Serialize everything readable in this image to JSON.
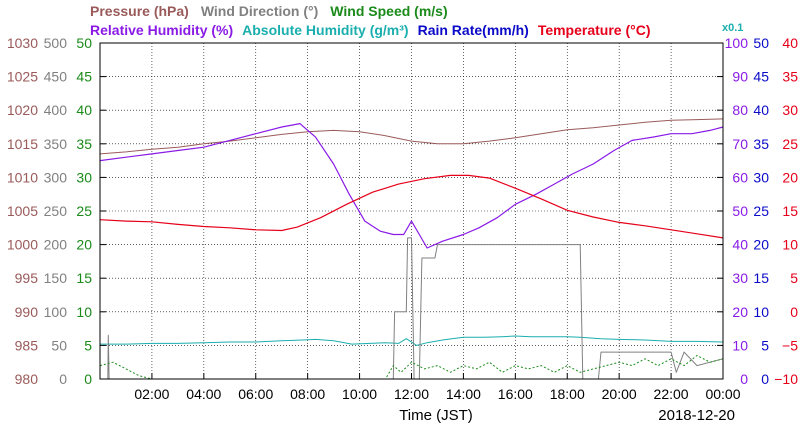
{
  "chart_data": {
    "type": "line",
    "legend": {
      "row1": [
        {
          "key": "pressure",
          "text": "Pressure (hPa)",
          "color": "#9a5a5a"
        },
        {
          "key": "wind_dir",
          "text": "Wind Direction (°)",
          "color": "#808080"
        },
        {
          "key": "wind_speed",
          "text": "Wind Speed (m/s)",
          "color": "#1a8a1a"
        }
      ],
      "row2": [
        {
          "key": "rh",
          "text": "Relative Humidity (%)",
          "color": "#8a1ae6"
        },
        {
          "key": "ah",
          "text": "Absolute Humidity (g/m³)",
          "color": "#1aaeae"
        },
        {
          "key": "rain",
          "text": "Rain Rate(mm/h)",
          "color": "#0a0ac8"
        },
        {
          "key": "temp",
          "text": "Temperature  (°C)",
          "color": "#e6001a"
        }
      ],
      "rain_scale_note": "x0.1"
    },
    "xlabel": "Time (JST)",
    "date": "2018-12-20",
    "x_ticks": [
      "02:00",
      "04:00",
      "06:00",
      "08:00",
      "10:00",
      "12:00",
      "14:00",
      "16:00",
      "18:00",
      "20:00",
      "22:00",
      "00:00"
    ],
    "xlim": [
      0,
      24
    ],
    "axes": {
      "pressure": {
        "min": 980,
        "max": 1030,
        "ticks": [
          "980",
          "985",
          "990",
          "995",
          "1000",
          "1005",
          "1010",
          "1015",
          "1020",
          "1025",
          "1030"
        ]
      },
      "wind_dir": {
        "min": 0,
        "max": 500,
        "ticks": [
          "0",
          "50",
          "100",
          "150",
          "200",
          "250",
          "300",
          "350",
          "400",
          "450",
          "500"
        ]
      },
      "wind_speed": {
        "min": 0,
        "max": 50,
        "ticks": [
          "0",
          "5",
          "10",
          "15",
          "20",
          "25",
          "30",
          "35",
          "40",
          "45",
          "50"
        ]
      },
      "rh": {
        "min": 0,
        "max": 100,
        "ticks": [
          "0",
          "10",
          "20",
          "30",
          "40",
          "50",
          "60",
          "70",
          "80",
          "90",
          "100"
        ]
      },
      "rain": {
        "min": 0,
        "max": 50,
        "ticks": [
          "0",
          "5",
          "10",
          "15",
          "20",
          "25",
          "30",
          "35",
          "40",
          "45",
          "50"
        ]
      },
      "temp": {
        "min": -10,
        "max": 40,
        "ticks": [
          "−10",
          "−5",
          "0",
          "5",
          "10",
          "15",
          "20",
          "25",
          "30",
          "35",
          "40"
        ]
      }
    },
    "series": [
      {
        "key": "pressure",
        "color": "#9a5a5a",
        "width": 1,
        "x": [
          0,
          1,
          2,
          3,
          4,
          5,
          6,
          7,
          8,
          9,
          10,
          11,
          12,
          13,
          14,
          15,
          16,
          17,
          18,
          19,
          20,
          21,
          22,
          23,
          24
        ],
        "y": [
          1013.5,
          1013.8,
          1014.2,
          1014.5,
          1015.0,
          1015.4,
          1015.9,
          1016.4,
          1016.8,
          1017.0,
          1016.8,
          1016.2,
          1015.4,
          1015.0,
          1015.0,
          1015.4,
          1015.9,
          1016.5,
          1017.1,
          1017.4,
          1017.8,
          1018.2,
          1018.5,
          1018.6,
          1018.7
        ]
      },
      {
        "key": "ah",
        "color": "#1aaeae",
        "width": 1,
        "x": [
          0,
          1,
          2,
          3,
          4,
          5,
          6,
          7,
          7.8,
          8.3,
          9,
          9.7,
          10.4,
          11,
          11.5,
          11.8,
          12.2,
          12.6,
          13.2,
          14,
          14.8,
          15.5,
          16,
          16.6,
          17.2,
          18,
          18.5,
          19.3,
          20,
          21,
          22,
          23,
          24
        ],
        "y": [
          5.2,
          5.2,
          5.3,
          5.3,
          5.4,
          5.5,
          5.5,
          5.7,
          5.8,
          5.9,
          5.7,
          5.2,
          5.3,
          5.4,
          5.3,
          6.0,
          5.0,
          5.4,
          5.8,
          6.2,
          6.2,
          6.3,
          6.4,
          6.3,
          6.3,
          6.3,
          6.2,
          6.0,
          5.9,
          5.8,
          5.6,
          5.6,
          5.5
        ]
      },
      {
        "key": "rh",
        "color": "#8a1ae6",
        "width": 1.2,
        "x": [
          0,
          1,
          2,
          3,
          4,
          5,
          6,
          7,
          7.7,
          8.3,
          9,
          9.6,
          10.2,
          10.8,
          11.3,
          11.7,
          12.0,
          12.3,
          12.6,
          13.2,
          14,
          14.6,
          15.3,
          16,
          16.8,
          17.5,
          18.2,
          19,
          19.8,
          20.5,
          21.3,
          22,
          22.8,
          23.5,
          24
        ],
        "y": [
          65,
          66,
          67,
          68,
          69,
          71,
          73,
          75,
          76,
          72,
          64,
          55,
          47,
          44,
          43,
          43,
          47,
          43,
          39,
          41,
          43,
          45,
          48,
          52,
          55,
          58,
          61,
          64,
          68,
          71,
          72,
          73,
          73,
          74,
          75
        ]
      },
      {
        "key": "temp",
        "color": "#e6001a",
        "width": 1.2,
        "x": [
          0,
          1,
          2,
          3,
          4,
          5,
          6,
          7,
          7.6,
          8.5,
          9.5,
          10.5,
          11.5,
          12.5,
          13.5,
          14.2,
          15,
          16,
          17,
          18,
          19,
          20,
          21,
          22,
          23,
          24
        ],
        "y": [
          13.7,
          13.5,
          13.4,
          13.0,
          12.7,
          12.5,
          12.2,
          12.1,
          12.6,
          14.0,
          16.0,
          17.8,
          19.0,
          19.8,
          20.3,
          20.3,
          19.9,
          18.4,
          16.8,
          15.1,
          14.1,
          13.3,
          12.8,
          12.2,
          11.6,
          11.0
        ]
      },
      {
        "key": "wind_dir",
        "color": "#808080",
        "width": 1,
        "step": true,
        "x": [
          0,
          0.3,
          0.32,
          0.35,
          1,
          2,
          3,
          4,
          5,
          6,
          7,
          8,
          9,
          10,
          11,
          11.3,
          11.35,
          11.8,
          11.85,
          12.0,
          12.1,
          12.3,
          12.4,
          12.9,
          13.0,
          13.8,
          13.9,
          18.5,
          18.6,
          19.2,
          19.3,
          20.2,
          20.3,
          22.0,
          22.2,
          22.5,
          23,
          24
        ],
        "y": [
          0,
          0,
          65,
          0,
          0,
          0,
          0,
          0,
          0,
          0,
          0,
          0,
          0,
          0,
          0,
          0,
          100,
          100,
          210,
          210,
          0,
          0,
          180,
          180,
          200,
          200,
          200,
          200,
          0,
          0,
          40,
          40,
          40,
          40,
          10,
          40,
          20,
          30
        ]
      },
      {
        "key": "wind_speed",
        "color": "#1a8a1a",
        "width": 1,
        "dash": "2,2",
        "x": [
          0,
          0.5,
          1,
          1.5,
          2,
          3,
          4,
          5,
          6,
          7,
          8,
          9,
          10,
          11,
          11.3,
          11.6,
          12,
          12.5,
          13,
          13.5,
          14,
          14.5,
          15,
          15.5,
          16,
          16.5,
          17,
          17.5,
          18,
          18.5,
          19,
          19.5,
          20,
          20.5,
          21,
          21.5,
          22,
          22.5,
          23,
          23.5,
          24
        ],
        "y": [
          2,
          2.5,
          1.5,
          0.5,
          0,
          0,
          0,
          0,
          0,
          0,
          0,
          0,
          0,
          0,
          2,
          1,
          2.5,
          1.5,
          2,
          1,
          2,
          1.5,
          2.5,
          1,
          2,
          1.5,
          2,
          1,
          2,
          1,
          1.5,
          2,
          2.5,
          2,
          3,
          2,
          3,
          2,
          3.5,
          2.5,
          3
        ]
      },
      {
        "key": "rain",
        "color": "#0a0ac8",
        "width": 1,
        "x": [
          0,
          24
        ],
        "y": [
          0,
          0
        ]
      }
    ]
  }
}
